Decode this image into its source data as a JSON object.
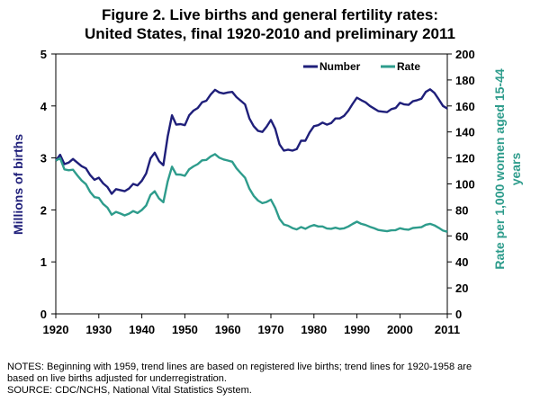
{
  "title_line1": "Figure 2.  Live births and general fertility rates:",
  "title_line2": "United States, final 1920-2010 and preliminary 2011",
  "notes_line1": "NOTES: Beginning with 1959, trend lines are based on registered live births; trend lines for 1920-1958 are",
  "notes_line2": "based on live births adjusted for underregistration.",
  "notes_line3": "SOURCE: CDC/NCHS, National Vital Statistics System.",
  "colors": {
    "number": "#1f1f7a",
    "rate": "#2e9c8c"
  },
  "chart_data": {
    "type": "line",
    "ylabel": "Millions of births",
    "y2label": "Rate per 1,000 women aged 15-44 years",
    "y2label_line1": "Rate per 1,000 women aged 15-44",
    "y2label_line2": "years",
    "xlim": [
      1920,
      2011
    ],
    "ylim": [
      0,
      5
    ],
    "y2lim": [
      0,
      200
    ],
    "x_ticks": [
      "1920",
      "1930",
      "1940",
      "1950",
      "1960",
      "1970",
      "1980",
      "1990",
      "2000",
      "2011"
    ],
    "x_tick_values": [
      1920,
      1930,
      1940,
      1950,
      1960,
      1970,
      1980,
      1990,
      2000,
      2011
    ],
    "y_ticks": [
      "0",
      "1",
      "2",
      "3",
      "4",
      "5"
    ],
    "y2_ticks": [
      "0",
      "20",
      "40",
      "60",
      "80",
      "100",
      "120",
      "140",
      "160",
      "180",
      "200"
    ],
    "legend_position": "top-right",
    "grid": false,
    "series": [
      {
        "name": "Number",
        "axis": "left",
        "x": [
          1920,
          1921,
          1922,
          1923,
          1924,
          1925,
          1926,
          1927,
          1928,
          1929,
          1930,
          1931,
          1932,
          1933,
          1934,
          1935,
          1936,
          1937,
          1938,
          1939,
          1940,
          1941,
          1942,
          1943,
          1944,
          1945,
          1946,
          1947,
          1948,
          1949,
          1950,
          1951,
          1952,
          1953,
          1954,
          1955,
          1956,
          1957,
          1958,
          1959,
          1960,
          1961,
          1962,
          1963,
          1964,
          1965,
          1966,
          1967,
          1968,
          1969,
          1970,
          1971,
          1972,
          1973,
          1974,
          1975,
          1976,
          1977,
          1978,
          1979,
          1980,
          1981,
          1982,
          1983,
          1984,
          1985,
          1986,
          1987,
          1988,
          1989,
          1990,
          1991,
          1992,
          1993,
          1994,
          1995,
          1996,
          1997,
          1998,
          1999,
          2000,
          2001,
          2002,
          2003,
          2004,
          2005,
          2006,
          2007,
          2008,
          2009,
          2010,
          2011
        ],
        "values": [
          2.95,
          3.06,
          2.88,
          2.91,
          2.98,
          2.91,
          2.84,
          2.8,
          2.67,
          2.58,
          2.62,
          2.51,
          2.44,
          2.31,
          2.4,
          2.38,
          2.36,
          2.41,
          2.5,
          2.47,
          2.56,
          2.7,
          2.99,
          3.1,
          2.94,
          2.86,
          3.41,
          3.82,
          3.64,
          3.65,
          3.63,
          3.82,
          3.91,
          3.96,
          4.07,
          4.1,
          4.22,
          4.31,
          4.26,
          4.24,
          4.26,
          4.27,
          4.17,
          4.1,
          4.03,
          3.76,
          3.61,
          3.52,
          3.5,
          3.6,
          3.73,
          3.56,
          3.26,
          3.14,
          3.16,
          3.14,
          3.17,
          3.33,
          3.33,
          3.49,
          3.61,
          3.63,
          3.68,
          3.64,
          3.67,
          3.76,
          3.76,
          3.81,
          3.91,
          4.04,
          4.16,
          4.11,
          4.07,
          4.0,
          3.95,
          3.9,
          3.89,
          3.88,
          3.94,
          3.96,
          4.06,
          4.03,
          4.02,
          4.09,
          4.11,
          4.14,
          4.27,
          4.32,
          4.25,
          4.13,
          4.0,
          3.95
        ]
      },
      {
        "name": "Rate",
        "axis": "right",
        "x": [
          1920,
          1921,
          1922,
          1923,
          1924,
          1925,
          1926,
          1927,
          1928,
          1929,
          1930,
          1931,
          1932,
          1933,
          1934,
          1935,
          1936,
          1937,
          1938,
          1939,
          1940,
          1941,
          1942,
          1943,
          1944,
          1945,
          1946,
          1947,
          1948,
          1949,
          1950,
          1951,
          1952,
          1953,
          1954,
          1955,
          1956,
          1957,
          1958,
          1959,
          1960,
          1961,
          1962,
          1963,
          1964,
          1965,
          1966,
          1967,
          1968,
          1969,
          1970,
          1971,
          1972,
          1973,
          1974,
          1975,
          1976,
          1977,
          1978,
          1979,
          1980,
          1981,
          1982,
          1983,
          1984,
          1985,
          1986,
          1987,
          1988,
          1989,
          1990,
          1991,
          1992,
          1993,
          1994,
          1995,
          1996,
          1997,
          1998,
          1999,
          2000,
          2001,
          2002,
          2003,
          2004,
          2005,
          2006,
          2007,
          2008,
          2009,
          2010,
          2011
        ],
        "values": [
          117.9,
          119.8,
          111.2,
          110.5,
          110.9,
          106.6,
          102.6,
          99.8,
          93.8,
          89.8,
          89.2,
          84.6,
          81.7,
          76.3,
          78.5,
          77.2,
          75.8,
          77.1,
          79.1,
          77.6,
          79.9,
          83.4,
          91.5,
          94.3,
          88.8,
          85.9,
          101.9,
          113.3,
          107.3,
          107.1,
          106.2,
          111.3,
          113.5,
          115.2,
          118.1,
          118.5,
          121.2,
          122.9,
          120.2,
          118.8,
          118.0,
          117.1,
          112.0,
          108.3,
          104.7,
          96.3,
          90.8,
          87.2,
          85.2,
          86.1,
          87.9,
          81.6,
          73.1,
          68.8,
          67.8,
          66.0,
          65.0,
          66.8,
          65.5,
          67.2,
          68.4,
          67.3,
          67.3,
          65.7,
          65.5,
          66.3,
          65.4,
          65.8,
          67.3,
          69.2,
          70.9,
          69.3,
          68.4,
          67.0,
          65.9,
          64.6,
          64.1,
          63.6,
          64.3,
          64.4,
          65.9,
          65.1,
          64.8,
          66.1,
          66.4,
          66.7,
          68.6,
          69.3,
          68.1,
          66.2,
          64.1,
          63.2
        ]
      }
    ]
  }
}
